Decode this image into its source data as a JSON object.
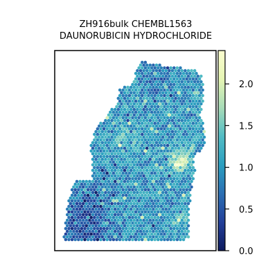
{
  "chart_data": {
    "type": "heatmap",
    "subtype": "spatial-spot-map",
    "title": [
      "ZH916bulk CHEMBL1563",
      "DAUNORUBICIN HYDROCHLORIDE"
    ],
    "xlabel": "",
    "ylabel": "",
    "axis_ticks_visible": false,
    "grid": false,
    "colormap": "YlGnBu_r",
    "colormap_stops": [
      "#0d1a5e",
      "#23409a",
      "#2b6fb3",
      "#2b9fc0",
      "#52bcc4",
      "#a8dcb8",
      "#e6f5b4",
      "#fafdcf"
    ],
    "colorbar": {
      "placement": "right",
      "range": [
        0.0,
        2.4
      ],
      "ticks": [
        0.0,
        0.5,
        1.0,
        1.5,
        2.0
      ],
      "tick_labels": [
        "0.0",
        "0.5",
        "1.0",
        "1.5",
        "2.0"
      ]
    },
    "value_summary": {
      "typical": [
        0.6,
        1.2
      ],
      "bright_region_values": [
        1.8,
        2.4
      ],
      "low_region_values": [
        0.3,
        0.7
      ]
    }
  }
}
